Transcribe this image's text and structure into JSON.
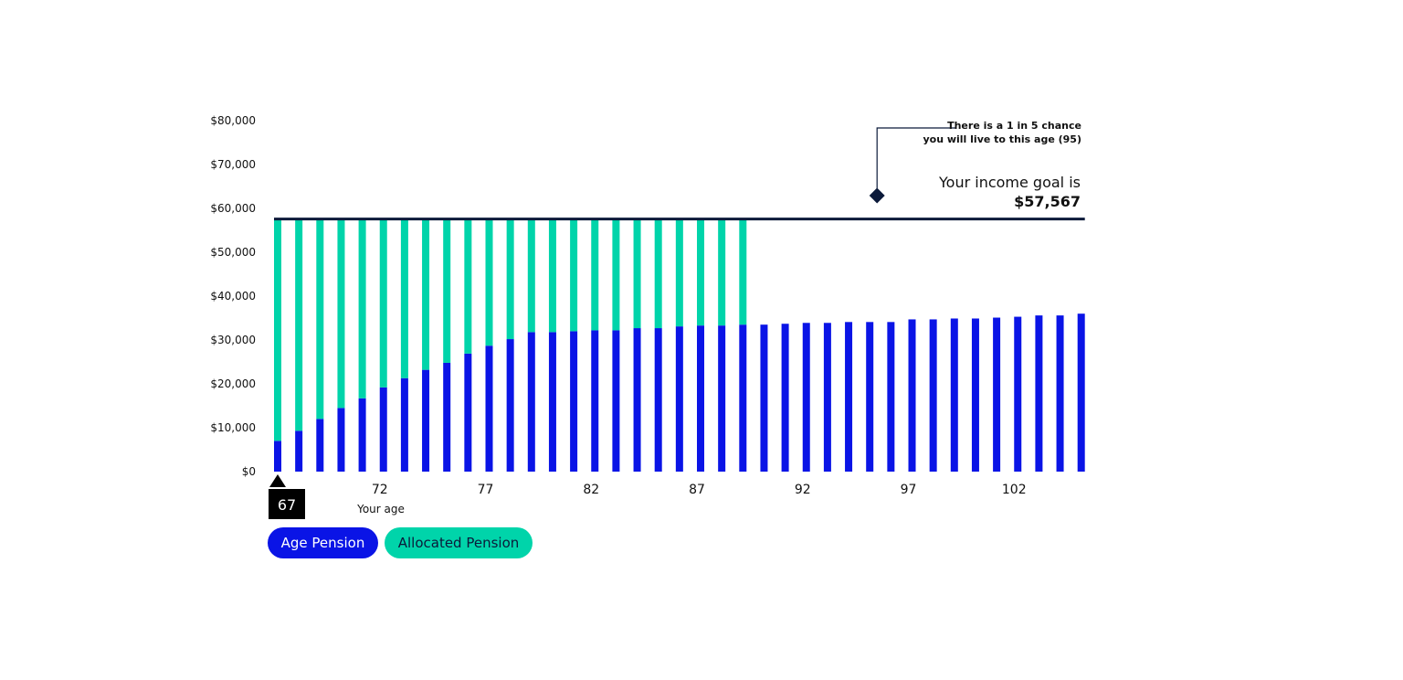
{
  "chart_data": {
    "type": "bar",
    "stacked": true,
    "xlabel": "Your age",
    "ylabel": "",
    "ylim": [
      0,
      80000
    ],
    "yticks": [
      "$0",
      "$10,000",
      "$20,000",
      "$30,000",
      "$40,000",
      "$50,000",
      "$60,000",
      "$70,000",
      "$80,000"
    ],
    "xticks": [
      "72",
      "77",
      "82",
      "87",
      "92",
      "97",
      "102"
    ],
    "x": [
      67,
      68,
      69,
      70,
      71,
      72,
      73,
      74,
      75,
      76,
      77,
      78,
      79,
      80,
      81,
      82,
      83,
      84,
      85,
      86,
      87,
      88,
      89,
      90,
      91,
      92,
      93,
      94,
      95,
      96,
      97,
      98,
      99,
      100,
      101,
      102,
      103,
      104,
      105
    ],
    "series": [
      {
        "name": "Age Pension",
        "color": "#0a14e6",
        "values": [
          7000,
          9300,
          12000,
          14500,
          16700,
          19200,
          21300,
          23200,
          24800,
          26900,
          28700,
          30200,
          31800,
          31800,
          32000,
          32200,
          32200,
          32700,
          32700,
          33100,
          33300,
          33300,
          33500,
          33500,
          33700,
          33900,
          33900,
          34100,
          34100,
          34100,
          34700,
          34700,
          34900,
          34900,
          35100,
          35300,
          35600,
          35600,
          36000
        ]
      },
      {
        "name": "Allocated Pension",
        "color": "#00d4aa",
        "values": [
          50567,
          48267,
          45567,
          43067,
          40867,
          38367,
          36267,
          34367,
          32767,
          30667,
          28867,
          27367,
          25767,
          25767,
          25567,
          25367,
          25367,
          24867,
          24867,
          24467,
          24267,
          24267,
          24067,
          0,
          0,
          0,
          0,
          0,
          0,
          0,
          0,
          0,
          0,
          0,
          0,
          0,
          0,
          0,
          0
        ]
      }
    ],
    "goal": {
      "value": 57567,
      "label_line1": "Your income goal is",
      "label_line2": "$57,567",
      "color": "#0b1a3a"
    },
    "annotation": {
      "age": 95,
      "line1": "There is a 1 in 5 chance",
      "line2": "you will live to this age (95)"
    },
    "current_age_marker": "67",
    "legend": [
      "Age Pension",
      "Allocated Pension"
    ],
    "grid": false,
    "legend_placement": "bottom-left"
  }
}
